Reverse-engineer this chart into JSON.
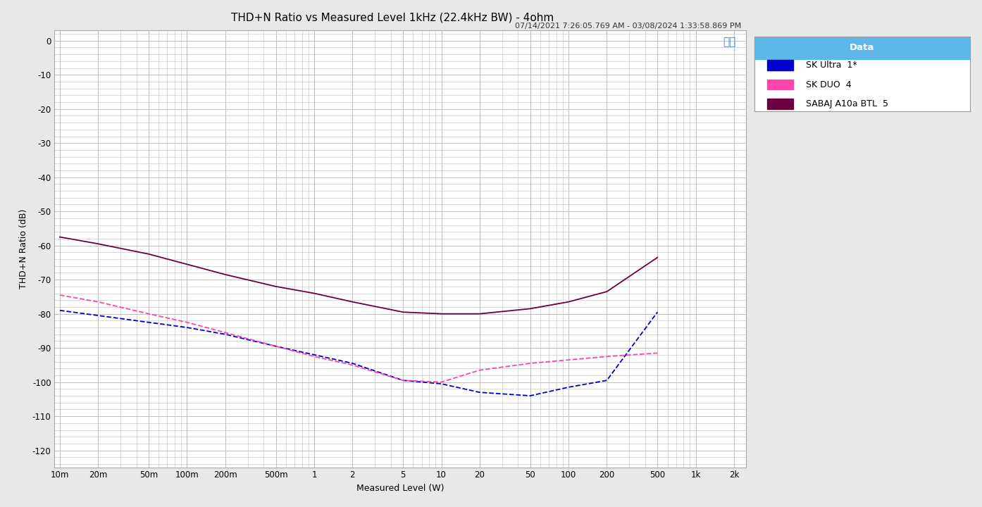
{
  "title": "THD+N Ratio vs Measured Level 1kHz (22.4kHz BW) - 4ohm",
  "subtitle": "07/14/2021 7:26:05.769 AM - 03/08/2024 1:33:58.869 PM",
  "xlabel": "Measured Level (W)",
  "ylabel": "THD+N Ratio (dB)",
  "ylim": [
    -125,
    3
  ],
  "yticks": [
    0,
    -10,
    -20,
    -30,
    -40,
    -50,
    -60,
    -70,
    -80,
    -90,
    -100,
    -110,
    -120
  ],
  "background_color": "#e8e8e8",
  "plot_bg_color": "#ffffff",
  "grid_color": "#c0c0c0",
  "legend_title": "Data",
  "legend_title_bg": "#5bb8e8",
  "series": [
    {
      "label": "SK Ultra  1*",
      "color": "#0000cc",
      "dash": "dashed",
      "x": [
        0.01,
        0.02,
        0.05,
        0.1,
        0.2,
        0.5,
        1.0,
        2.0,
        5.0,
        10.0,
        20.0,
        50.0,
        100.0,
        200.0,
        500.0
      ],
      "y": [
        -79.0,
        -80.5,
        -82.5,
        -84.0,
        -86.0,
        -89.5,
        -92.0,
        -94.5,
        -99.5,
        -100.5,
        -103.0,
        -104.0,
        -101.5,
        -99.5,
        -79.5
      ]
    },
    {
      "label": "SK DUO  4",
      "color": "#ff44aa",
      "dash": "dashed",
      "x": [
        0.01,
        0.02,
        0.05,
        0.1,
        0.2,
        0.5,
        1.0,
        2.0,
        5.0,
        10.0,
        20.0,
        50.0,
        100.0,
        200.0,
        500.0
      ],
      "y": [
        -74.5,
        -76.5,
        -80.0,
        -82.5,
        -85.5,
        -89.5,
        -92.5,
        -95.0,
        -99.5,
        -100.0,
        -96.5,
        -94.5,
        -93.5,
        -92.5,
        -91.5
      ]
    },
    {
      "label": "SABAJ A10a BTL  5",
      "color": "#6b0040",
      "dash": "solid",
      "x": [
        0.01,
        0.02,
        0.05,
        0.1,
        0.2,
        0.5,
        1.0,
        2.0,
        5.0,
        10.0,
        20.0,
        50.0,
        100.0,
        200.0,
        500.0
      ],
      "y": [
        -57.5,
        -59.5,
        -62.5,
        -65.5,
        -68.5,
        -72.0,
        -74.0,
        -76.5,
        -79.5,
        -80.0,
        -80.0,
        -78.5,
        -76.5,
        -73.5,
        -63.5
      ]
    }
  ],
  "xtick_positions": [
    0.01,
    0.02,
    0.05,
    0.1,
    0.2,
    0.5,
    1.0,
    2.0,
    5.0,
    10.0,
    20.0,
    50.0,
    100.0,
    200.0,
    500.0,
    1000.0,
    2000.0
  ],
  "xtick_labels": [
    "10m",
    "20m",
    "50m",
    "100m",
    "200m",
    "500m",
    "1",
    "2",
    "5",
    "10",
    "20",
    "50",
    "100",
    "200",
    "500",
    "1k",
    "2k"
  ],
  "ap_logo_color": "#4488cc",
  "title_fontsize": 11,
  "subtitle_fontsize": 8,
  "axis_fontsize": 9,
  "tick_fontsize": 8.5,
  "legend_fontsize": 9
}
